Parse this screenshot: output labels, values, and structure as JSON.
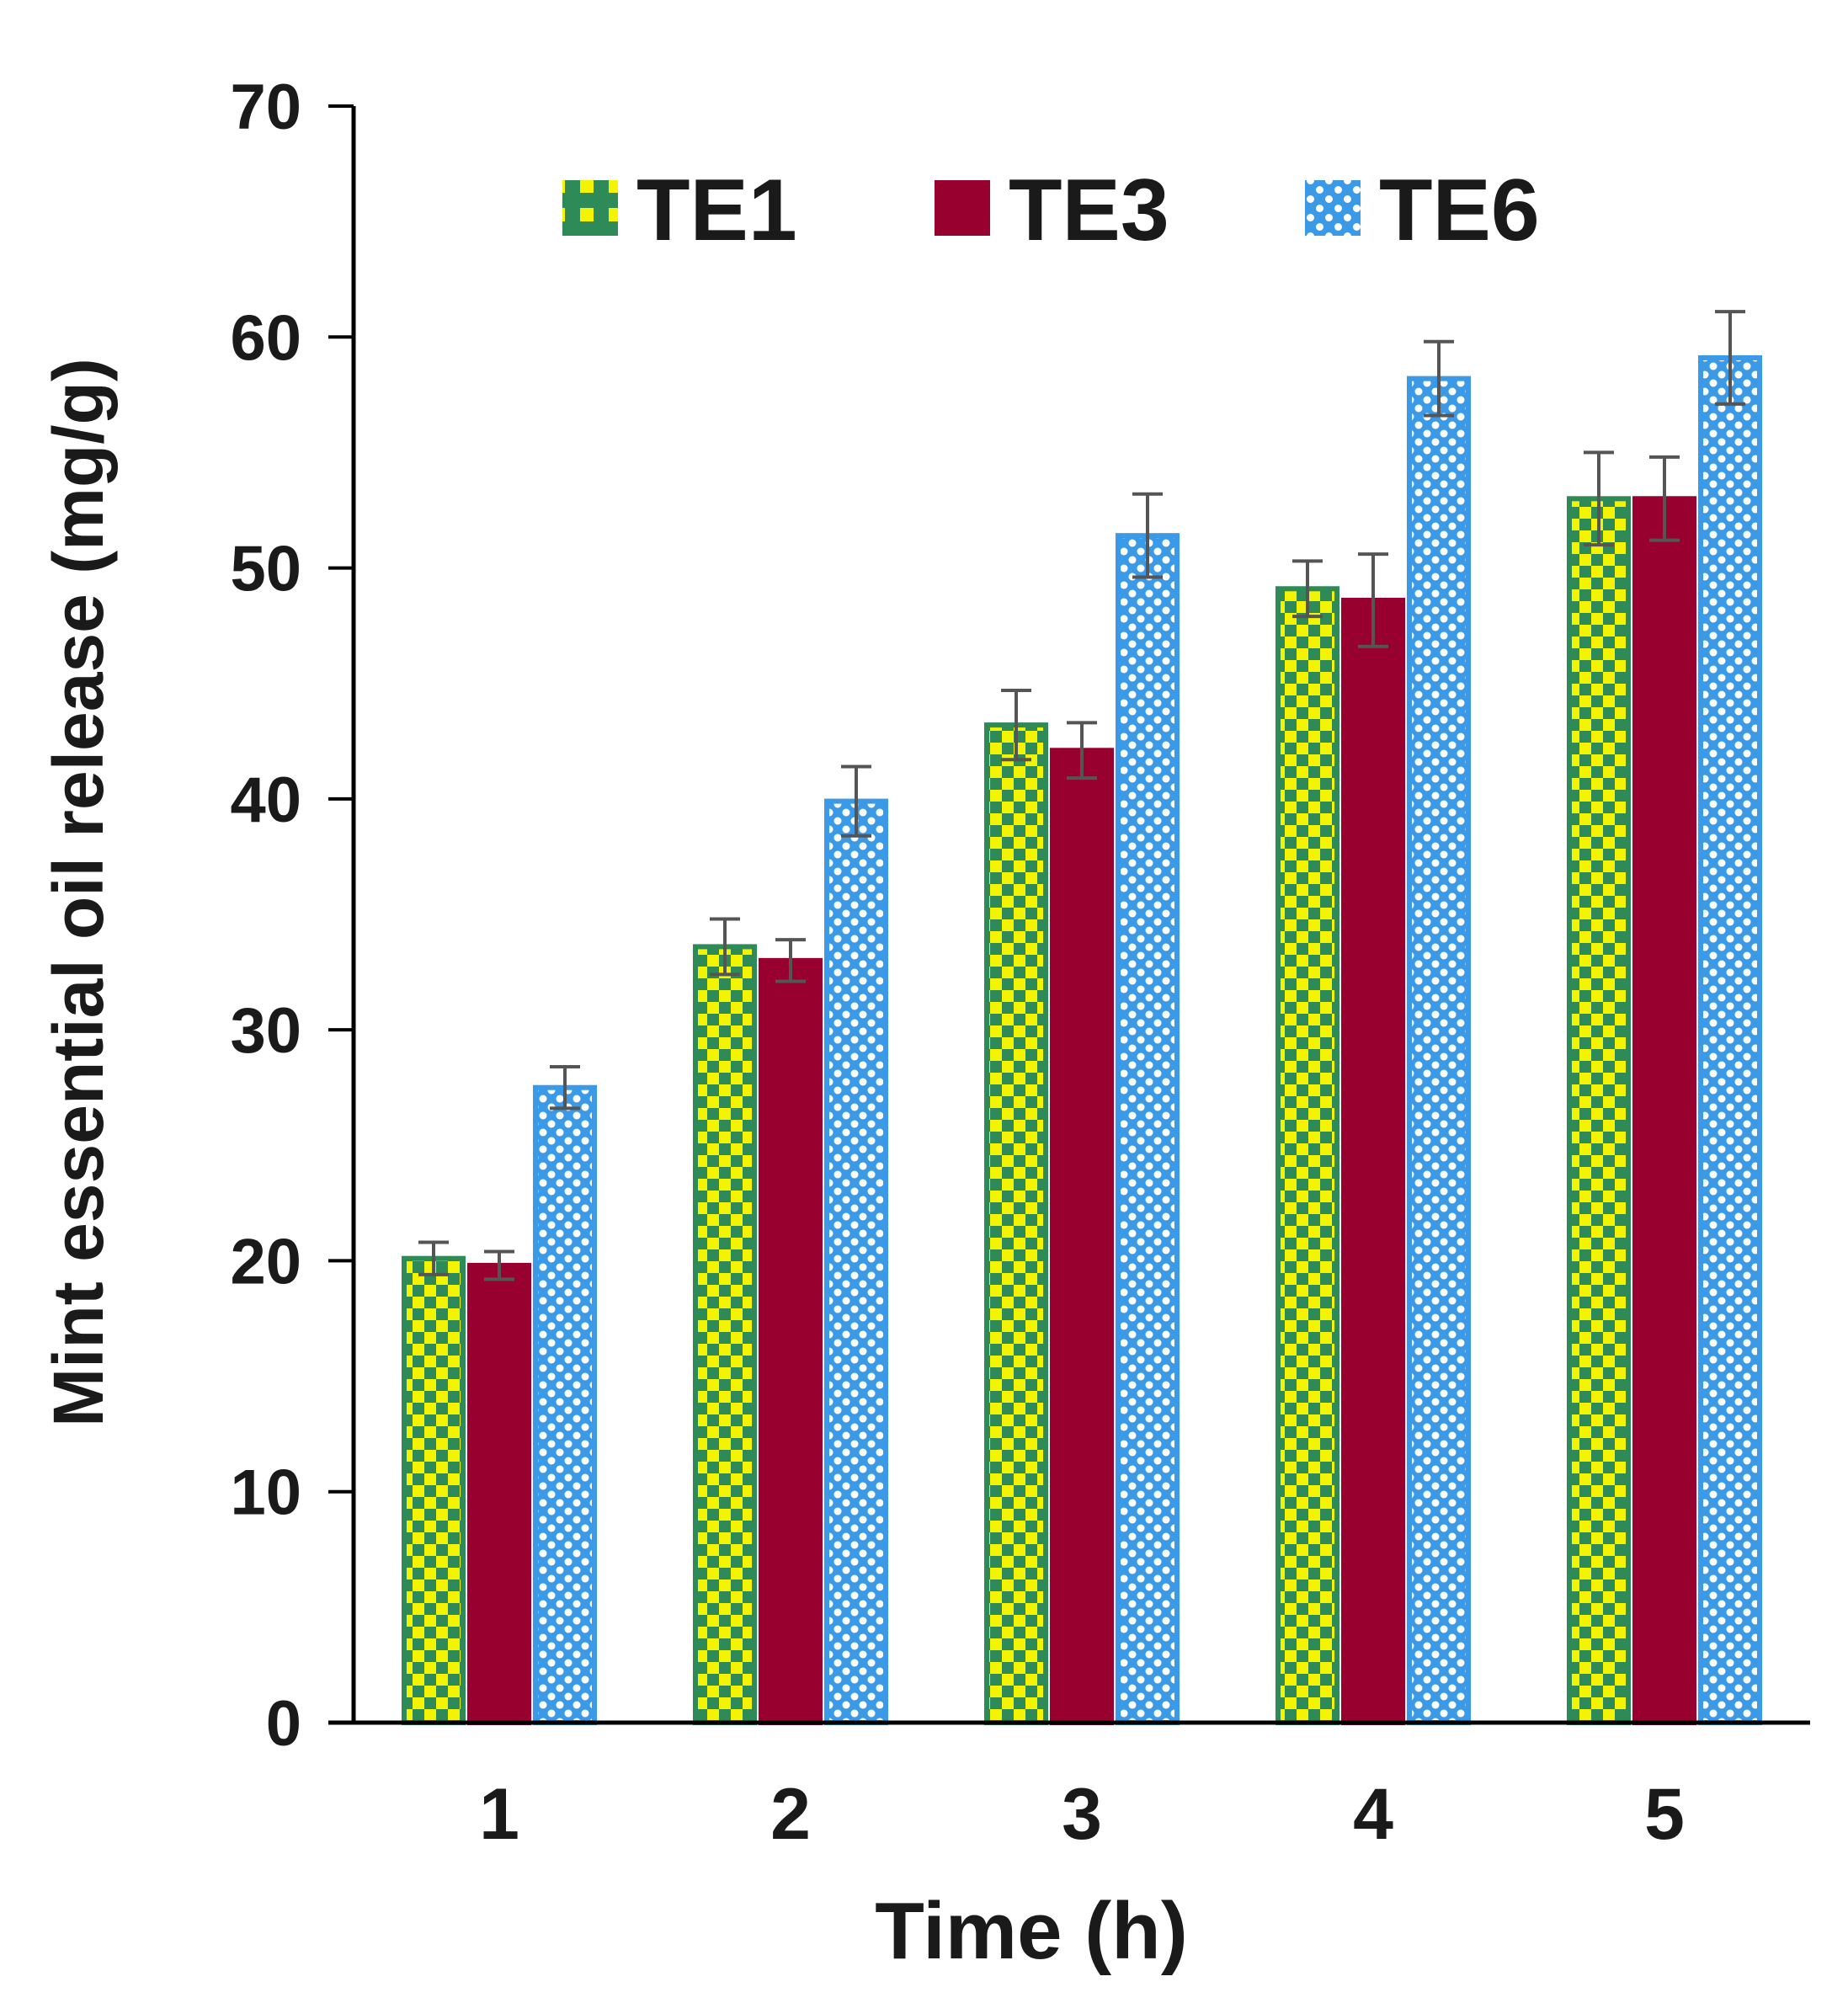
{
  "chart_data": {
    "type": "bar",
    "title": "",
    "xlabel": "Time (h)",
    "ylabel": "Mint essential oil release (mg/g)",
    "ylim": [
      0,
      70
    ],
    "yticks": [
      0,
      10,
      20,
      30,
      40,
      50,
      60,
      70
    ],
    "categories": [
      "1",
      "2",
      "3",
      "4",
      "5"
    ],
    "legend_position": "top",
    "grid": false,
    "series": [
      {
        "name": "TE1",
        "values": [
          20.1,
          33.6,
          43.2,
          49.1,
          53.0
        ],
        "errors": [
          0.7,
          1.2,
          1.5,
          1.2,
          2.0
        ],
        "color": "#2e8b57",
        "fill_color": "#f4f400",
        "pattern": "checker"
      },
      {
        "name": "TE3",
        "values": [
          19.8,
          33.0,
          42.1,
          48.6,
          53.0
        ],
        "errors": [
          0.6,
          0.9,
          1.2,
          2.0,
          1.8
        ],
        "color": "#980030",
        "pattern": "solid"
      },
      {
        "name": "TE6",
        "values": [
          27.5,
          39.9,
          51.4,
          58.2,
          59.1
        ],
        "errors": [
          0.9,
          1.5,
          1.8,
          1.6,
          2.0
        ],
        "color": "#3a9ae8",
        "fill_color": "#ffffff",
        "pattern": "dots"
      }
    ],
    "error_bar_color": "#555555"
  }
}
